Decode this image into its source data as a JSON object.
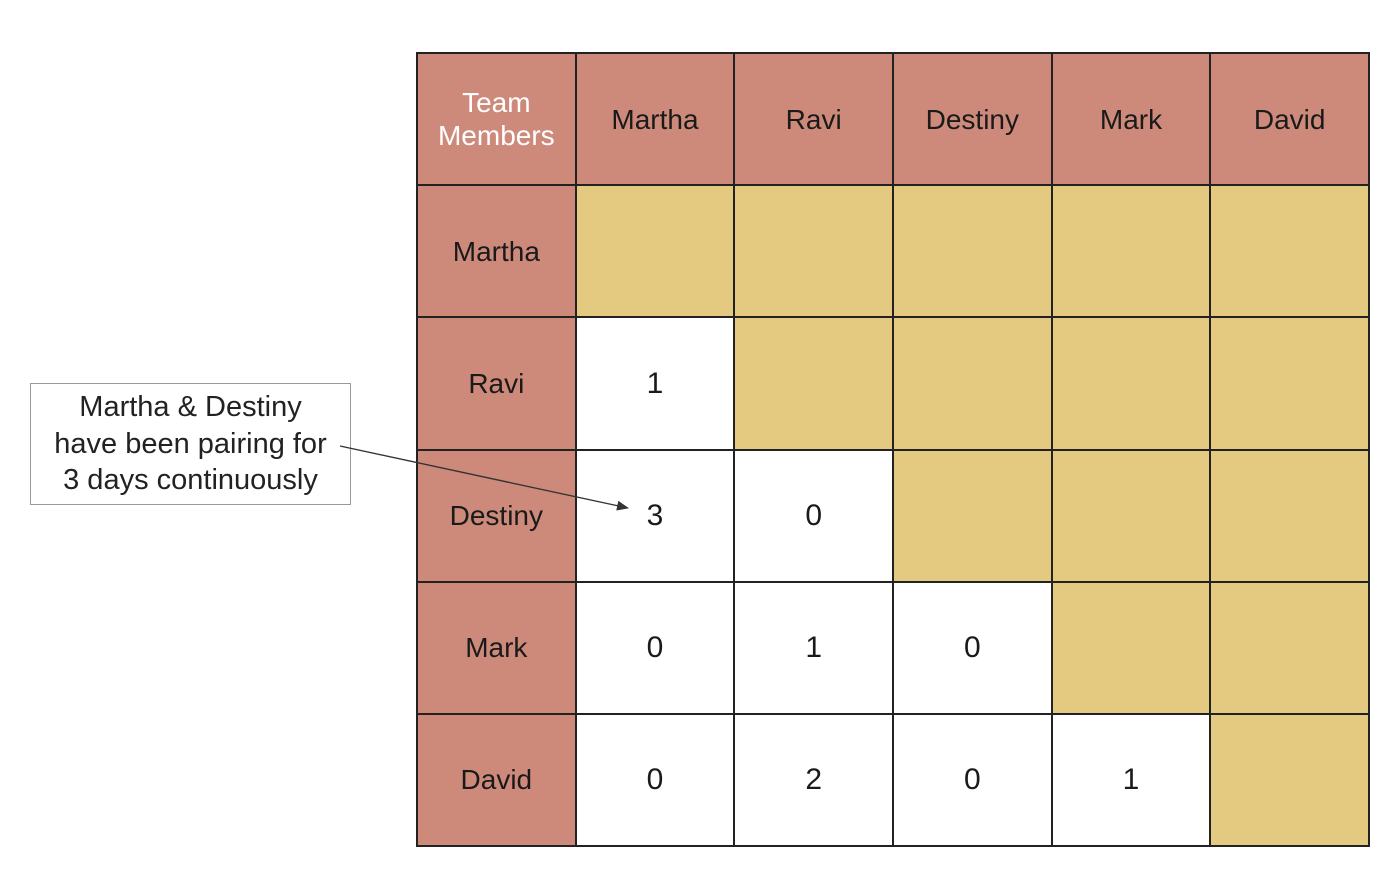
{
  "matrix": {
    "corner_label": "Team\nMembers",
    "columns": [
      "Martha",
      "Ravi",
      "Destiny",
      "Mark",
      "David"
    ],
    "rows": [
      {
        "name": "Martha",
        "values": [
          "",
          "",
          "",
          "",
          ""
        ]
      },
      {
        "name": "Ravi",
        "values": [
          "1",
          "",
          "",
          "",
          ""
        ]
      },
      {
        "name": "Destiny",
        "values": [
          "3",
          "0",
          "",
          "",
          ""
        ]
      },
      {
        "name": "Mark",
        "values": [
          "0",
          "1",
          "0",
          "",
          ""
        ]
      },
      {
        "name": "David",
        "values": [
          "0",
          "2",
          "0",
          "1",
          ""
        ]
      }
    ]
  },
  "callout": {
    "text": "Martha & Destiny\nhave been pairing for\n3 days continuously"
  },
  "colors": {
    "header": "#cd8a7b",
    "filled": "#e4ca80",
    "value_cell": "#ffffff",
    "grid_line": "#222222",
    "corner_text": "#ffffff"
  }
}
